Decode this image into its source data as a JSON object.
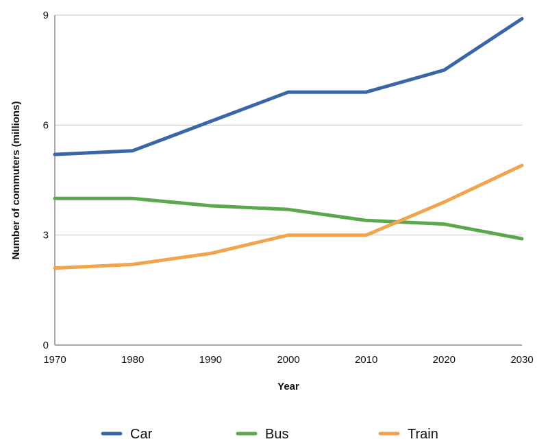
{
  "chart_data": {
    "type": "line",
    "title": "",
    "xlabel": "Year",
    "ylabel": "Number of commuters (millions)",
    "x": [
      1970,
      1980,
      1990,
      2000,
      2010,
      2020,
      2030
    ],
    "xlim": [
      1970,
      2030
    ],
    "ylim": [
      0,
      9
    ],
    "yticks": [
      0,
      3,
      6,
      9
    ],
    "xticks": [
      1970,
      1980,
      1990,
      2000,
      2010,
      2020,
      2030
    ],
    "grid": "horizontal",
    "legend": "bottom",
    "series": [
      {
        "name": "Car",
        "color": "#3a66a7",
        "values": [
          5.2,
          5.3,
          6.1,
          6.9,
          6.9,
          7.5,
          8.9
        ]
      },
      {
        "name": "Bus",
        "color": "#5aa84c",
        "values": [
          4.0,
          4.0,
          3.8,
          3.7,
          3.4,
          3.3,
          2.9
        ]
      },
      {
        "name": "Train",
        "color": "#f0a44e",
        "values": [
          2.1,
          2.2,
          2.5,
          3.0,
          3.0,
          3.9,
          4.9
        ]
      }
    ]
  }
}
